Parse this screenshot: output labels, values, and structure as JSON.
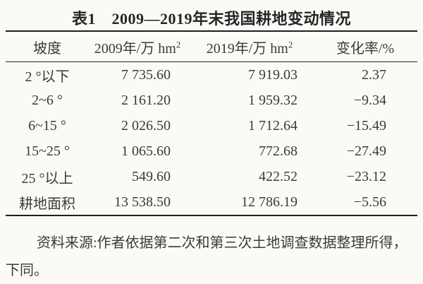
{
  "title": "表1　2009—2019年末我国耕地变动情况",
  "table": {
    "columns": [
      {
        "label": "坡度",
        "sup": ""
      },
      {
        "label": "2009年/万 hm",
        "sup": "2"
      },
      {
        "label": "2019年/万 hm",
        "sup": "2"
      },
      {
        "label": "变化率/%",
        "sup": ""
      }
    ],
    "rows": [
      {
        "slope": "2 °以下",
        "y2009": "7 735.60",
        "y2019": "7 919.03",
        "change": "2.37"
      },
      {
        "slope": "2~6 °",
        "y2009": "2 161.20",
        "y2019": "1 959.32",
        "change": "−9.34"
      },
      {
        "slope": "6~15 °",
        "y2009": "2 026.50",
        "y2019": "1 712.64",
        "change": "−15.49"
      },
      {
        "slope": "15~25 °",
        "y2009": "1 065.60",
        "y2019": "772.68",
        "change": "−27.49"
      },
      {
        "slope": "25 °以上",
        "y2009": "549.60",
        "y2019": "422.52",
        "change": "−23.12"
      },
      {
        "slope": "耕地面积",
        "y2009": "13 538.50",
        "y2019": "12 786.19",
        "change": "−5.56"
      }
    ]
  },
  "footnote": {
    "lines": [
      "资料来源:作者依据第二次和第三次土地调查数据整理所得，",
      "下同。"
    ]
  },
  "chart_data": {
    "type": "table",
    "title": "表1 2009—2019年末我国耕地变动情况",
    "columns": [
      "坡度",
      "2009年/万hm²",
      "2019年/万hm²",
      "变化率/%"
    ],
    "rows": [
      [
        "2°以下",
        7735.6,
        7919.03,
        2.37
      ],
      [
        "2~6°",
        2161.2,
        1959.32,
        -9.34
      ],
      [
        "6~15°",
        2026.5,
        1712.64,
        -15.49
      ],
      [
        "15~25°",
        1065.6,
        772.68,
        -27.49
      ],
      [
        "25°以上",
        549.6,
        422.52,
        -23.12
      ],
      [
        "耕地面积",
        13538.5,
        12786.19,
        -5.56
      ]
    ],
    "source_note": "资料来源:作者依据第二次和第三次土地调查数据整理所得，下同。"
  },
  "colors": {
    "background": "#fbfaf7",
    "text": "#3a3a3a",
    "rule": "#1f1f1f"
  }
}
